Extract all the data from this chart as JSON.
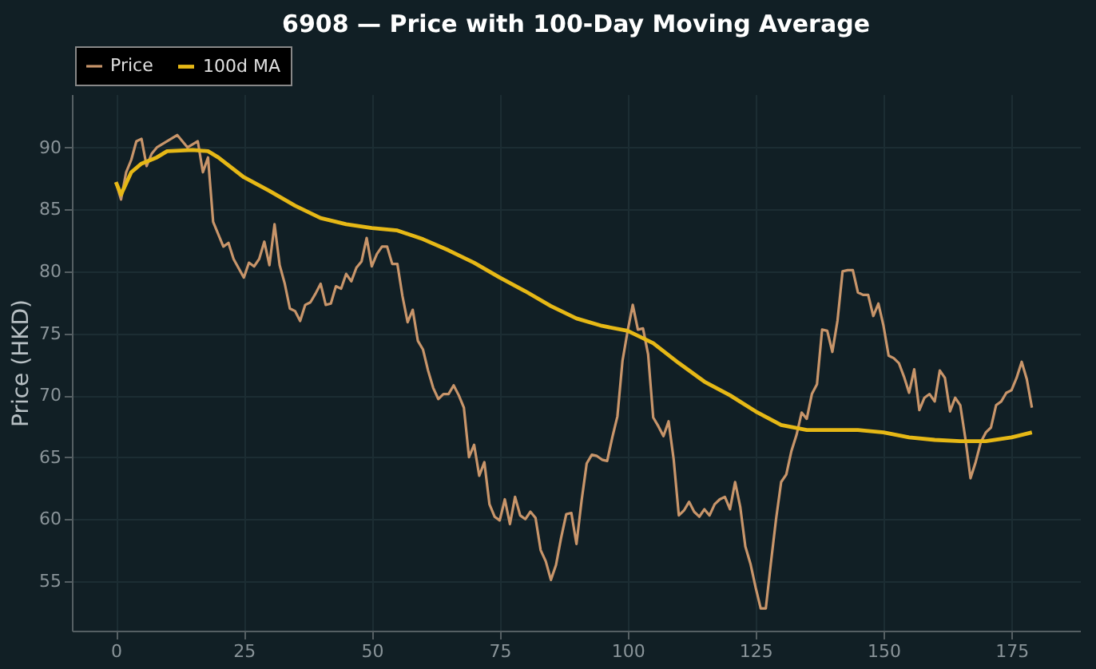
{
  "chart_data": {
    "type": "line",
    "title": "6908 — Price with 100-Day Moving Average",
    "ylabel": "Price (HKD)",
    "xlim": [
      -8.6,
      188.4
    ],
    "xticks": [
      0,
      25,
      50,
      75,
      100,
      125,
      150,
      175
    ],
    "ylim": [
      51,
      94.3
    ],
    "yticks": [
      55,
      60,
      65,
      70,
      75,
      80,
      85,
      90
    ],
    "grid": true,
    "legend": "top left",
    "line_style": "solid",
    "marker": "none",
    "series": [
      {
        "name": "Price",
        "color": "#c8956a",
        "x": [
          0,
          1,
          2,
          3,
          4,
          5,
          6,
          7,
          8,
          10,
          12,
          14,
          16,
          17,
          18,
          19,
          20,
          21,
          22,
          23,
          25,
          26,
          27,
          28,
          29,
          30,
          31,
          32,
          33,
          34,
          35,
          36,
          37,
          38,
          39,
          40,
          41,
          42,
          43,
          44,
          45,
          46,
          47,
          48,
          49,
          50,
          51,
          52,
          53,
          54,
          55,
          56,
          57,
          58,
          59,
          60,
          61,
          62,
          63,
          64,
          65,
          66,
          67,
          68,
          69,
          70,
          71,
          72,
          73,
          74,
          75,
          76,
          77,
          78,
          79,
          80,
          81,
          82,
          83,
          84,
          85,
          86,
          87,
          88,
          89,
          90,
          91,
          92,
          93,
          94,
          95,
          96,
          97,
          98,
          99,
          100,
          101,
          102,
          103,
          104,
          105,
          106,
          107,
          108,
          109,
          110,
          111,
          112,
          113,
          114,
          115,
          116,
          117,
          118,
          119,
          120,
          121,
          122,
          123,
          124,
          125,
          126,
          127,
          128,
          129,
          130,
          131,
          132,
          133,
          134,
          135,
          136,
          137,
          138,
          139,
          140,
          141,
          142,
          143,
          144,
          145,
          146,
          147,
          148,
          149,
          150,
          151,
          152,
          153,
          154,
          155,
          156,
          157,
          158,
          159,
          160,
          161,
          162,
          163,
          164,
          165,
          166,
          167,
          168,
          169,
          170,
          171,
          172,
          173,
          174,
          175,
          176,
          177,
          178,
          179
        ],
        "values": [
          87.2,
          85.8,
          88,
          89,
          90.5,
          90.7,
          88.5,
          89.5,
          90,
          90.5,
          91,
          90,
          90.5,
          88,
          89.2,
          84,
          83,
          82,
          82.3,
          81,
          79.5,
          80.7,
          80.4,
          81,
          82.4,
          80.5,
          83.8,
          80.5,
          79,
          77,
          76.8,
          76,
          77.3,
          77.5,
          78.2,
          79,
          77.3,
          77.4,
          78.8,
          78.6,
          79.8,
          79.2,
          80.3,
          80.8,
          82.7,
          80.4,
          81.4,
          82,
          82,
          80.6,
          80.6,
          78,
          75.9,
          76.9,
          74.4,
          73.7,
          72,
          70.6,
          69.7,
          70.1,
          70.1,
          70.8,
          70,
          69,
          65,
          66,
          63.5,
          64.6,
          61.2,
          60.2,
          59.9,
          61.6,
          59.6,
          61.8,
          60.3,
          60,
          60.6,
          60.1,
          57.5,
          56.6,
          55.1,
          56.3,
          58.5,
          60.4,
          60.5,
          58,
          61.5,
          64.5,
          65.2,
          65.1,
          64.8,
          64.7,
          66.6,
          68.3,
          72.8,
          75.2,
          77.3,
          75.3,
          75.4,
          73.3,
          68.2,
          67.5,
          66.7,
          67.9,
          64.8,
          60.3,
          60.7,
          61.4,
          60.6,
          60.2,
          60.8,
          60.3,
          61.2,
          61.6,
          61.8,
          60.8,
          63,
          61,
          57.8,
          56.4,
          54.5,
          52.8,
          52.8,
          56.5,
          60,
          63,
          63.6,
          65.5,
          66.8,
          68.6,
          68.1,
          70.1,
          70.9,
          75.3,
          75.2,
          73.5,
          76,
          80,
          80.1,
          80.1,
          78.3,
          78.1,
          78.1,
          76.4,
          77.4,
          75.6,
          73.2,
          73,
          72.6,
          71.5,
          70.2,
          72.1,
          68.8,
          69.8,
          70.1,
          69.5,
          72,
          71.4,
          68.7,
          69.8,
          69.2,
          66.5,
          63.3,
          64.6,
          66.2,
          67,
          67.4,
          69.2,
          69.5,
          70.2,
          70.4,
          71.4,
          72.7,
          71.3,
          69
        ]
      },
      {
        "name": "100d MA",
        "color": "#e6b816",
        "x": [
          0,
          1,
          3,
          5,
          8,
          10,
          15,
          18,
          20,
          25,
          30,
          35,
          40,
          45,
          50,
          55,
          60,
          65,
          70,
          75,
          80,
          85,
          90,
          95,
          100,
          105,
          110,
          115,
          120,
          125,
          130,
          135,
          140,
          145,
          150,
          155,
          160,
          165,
          170,
          175,
          179
        ],
        "values": [
          87.2,
          86.2,
          88,
          88.7,
          89.2,
          89.7,
          89.8,
          89.7,
          89.2,
          87.6,
          86.5,
          85.3,
          84.3,
          83.8,
          83.5,
          83.3,
          82.6,
          81.7,
          80.7,
          79.5,
          78.4,
          77.2,
          76.2,
          75.6,
          75.2,
          74.2,
          72.6,
          71.1,
          70,
          68.7,
          67.6,
          67.2,
          67.2,
          67.2,
          67,
          66.6,
          66.4,
          66.3,
          66.3,
          66.6,
          67
        ]
      }
    ]
  }
}
